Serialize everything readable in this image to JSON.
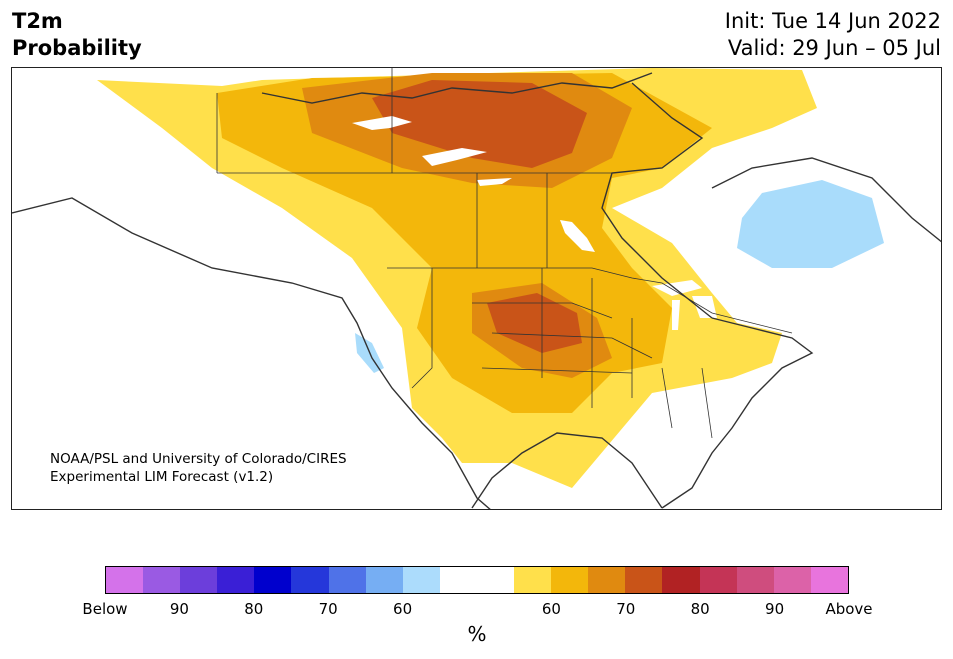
{
  "header": {
    "title_line1": "T2m",
    "title_line2": "Probability",
    "init_text": "Init: Tue 14 Jun 2022",
    "valid_text": "Valid: 29 Jun – 05 Jul"
  },
  "map": {
    "credit_line1": "NOAA/PSL and University of Colorado/CIRES",
    "credit_line2": "Experimental LIM Forecast (v1.2)",
    "colors": {
      "above_60": "#ffe04b",
      "above_65": "#f3b70b",
      "above_70": "#e08a10",
      "above_75": "#c95418",
      "below_60": "#a9dcfb",
      "lakes": "#ffffff",
      "borders": "#333333"
    }
  },
  "colorbar": {
    "segments": [
      "#d472ea",
      "#9a5ae3",
      "#6c3edb",
      "#3a1fd6",
      "#0000cd",
      "#2537da",
      "#4f72e8",
      "#76aef3",
      "#acdcfc",
      "#ffffff",
      "#ffffff",
      "#ffe04b",
      "#f3b70b",
      "#e08a10",
      "#c95418",
      "#b12223",
      "#c43456",
      "#cf4d7e",
      "#dc62a8",
      "#e874dd"
    ],
    "tick_labels": [
      "Below",
      "90",
      "80",
      "70",
      "60",
      "60",
      "70",
      "80",
      "90",
      "Above"
    ],
    "unit": "%"
  }
}
